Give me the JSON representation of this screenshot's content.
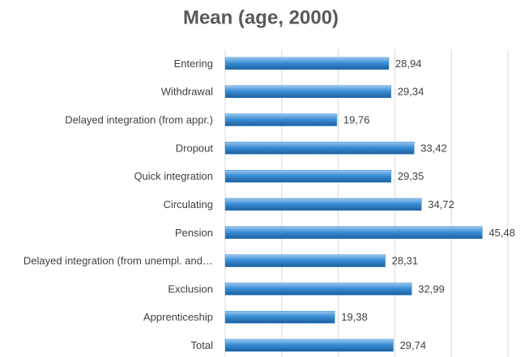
{
  "chart_data": {
    "type": "hbar",
    "title": "Mean (age, 2000)",
    "categories": [
      "Entering",
      "Withdrawal",
      "Delayed integration (from appr.)",
      "Dropout",
      "Quick integration",
      "Circulating",
      "Pension",
      "Delayed integration (from unempl. and…",
      "Exclusion",
      "Apprenticeship",
      "Total"
    ],
    "values": [
      28.94,
      29.34,
      19.76,
      33.42,
      29.35,
      34.72,
      45.48,
      28.31,
      32.99,
      19.38,
      29.74
    ],
    "value_labels": [
      "28,94",
      "29,34",
      "19,76",
      "33,42",
      "29,35",
      "34,72",
      "45,48",
      "28,31",
      "32,99",
      "19,38",
      "29,74"
    ],
    "color": "#3a8fd6",
    "xlim": [
      0,
      50
    ],
    "xticks": [
      0,
      10,
      20,
      30,
      40,
      50
    ],
    "grid": true
  }
}
